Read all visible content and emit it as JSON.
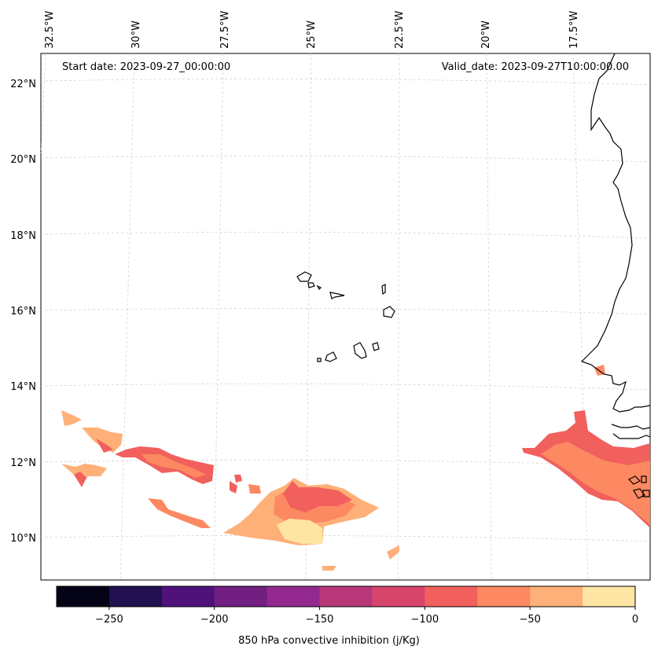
{
  "map": {
    "start_date": "Start date: 2023-09-27_00:00:00",
    "valid_date": "Valid_date: 2023-09-27T10:00:00.00",
    "lon_labels": [
      "32.5°W",
      "30°W",
      "27.5°W",
      "25°W",
      "22.5°W",
      "20°W",
      "17.5°W"
    ],
    "lat_labels": [
      "22°N",
      "20°N",
      "18°N",
      "16°N",
      "14°N",
      "12°N",
      "10°N"
    ],
    "variable_label": "850 hPa convective inhibition (j/Kg)",
    "features": [
      "Cape Verde islands",
      "West African coastline"
    ]
  },
  "colorbar": {
    "ticks": [
      "−250",
      "−200",
      "−150",
      "−100",
      "−50",
      "0"
    ],
    "colors": [
      "#050416",
      "#221150",
      "#4f127b",
      "#721f81",
      "#93298e",
      "#b73779",
      "#d8456c",
      "#f1605d",
      "#fc8961",
      "#feb078",
      "#fee5a3"
    ],
    "tick_values": [
      -250,
      -200,
      -150,
      -100,
      -50,
      0
    ],
    "range": [
      -275,
      0
    ]
  },
  "chart_data": {
    "type": "heatmap",
    "title": "",
    "variable": "850 hPa convective inhibition (j/Kg)",
    "units": "j/Kg",
    "levels": [
      -275,
      -250,
      -225,
      -200,
      -175,
      -150,
      -125,
      -100,
      -75,
      -50,
      -25,
      0
    ],
    "lon_ticks": [
      -32.5,
      -30,
      -27.5,
      -25,
      -22.5,
      -20,
      -17.5
    ],
    "lat_ticks": [
      22,
      20,
      18,
      16,
      14,
      12,
      10
    ],
    "regions": [
      {
        "name": "west band 33W-27W near 12N",
        "range": [
          -50,
          0
        ]
      },
      {
        "name": "band 29W-24W near 11.5N",
        "range": [
          -100,
          -75
        ]
      },
      {
        "name": "south of Cape Verde 26W-22W near 10.5N",
        "range": [
          -100,
          0
        ]
      },
      {
        "name": "Senegal/Gambia coast 20W-16W near 12N",
        "range": [
          -100,
          -50
        ]
      }
    ]
  }
}
